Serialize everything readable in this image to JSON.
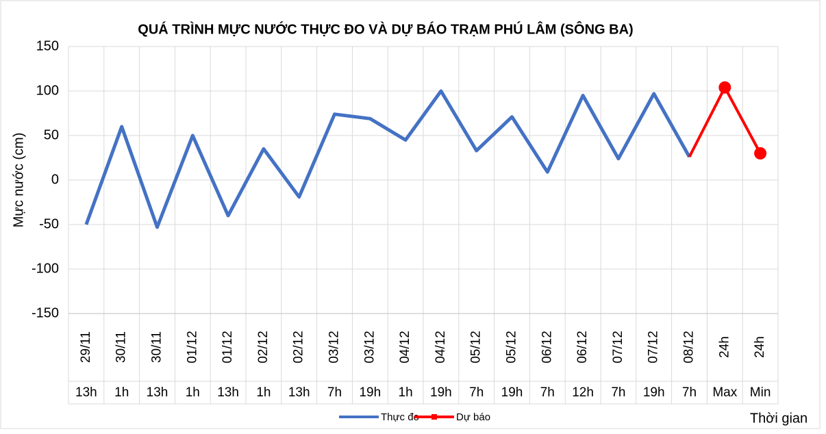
{
  "chart_data": {
    "type": "line",
    "title": "QUÁ TRÌNH MỰC NƯỚC THỰC ĐO VÀ DỰ BÁO TRẠM PHÚ LÂM (SÔNG BA)",
    "y_label": "Mực nước (cm)",
    "x_label": "Thời gian",
    "categories": [
      "29/11",
      "30/11",
      "30/11",
      "01/12",
      "01/12",
      "02/12",
      "02/12",
      "03/12",
      "03/12",
      "04/12",
      "04/12",
      "05/12",
      "05/12",
      "06/12",
      "06/12",
      "07/12",
      "07/12",
      "08/12",
      "24h",
      "24h"
    ],
    "subcategories": [
      "13h",
      "1h",
      "13h",
      "1h",
      "13h",
      "1h",
      "13h",
      "7h",
      "19h",
      "1h",
      "19h",
      "7h",
      "19h",
      "7h",
      "12h",
      "7h",
      "19h",
      "7h",
      "Max",
      "Min"
    ],
    "series": [
      {
        "name": "Thực đo",
        "color": "#4472c4",
        "values": [
          -50,
          60,
          -53,
          50,
          -40,
          35,
          -19,
          74,
          69,
          45,
          100,
          33,
          71,
          9,
          95,
          24,
          97,
          26,
          null,
          null
        ]
      },
      {
        "name": "Dự báo",
        "color": "#ff0000",
        "values": [
          null,
          null,
          null,
          null,
          null,
          null,
          null,
          null,
          null,
          null,
          null,
          null,
          null,
          null,
          null,
          null,
          null,
          26,
          104,
          30
        ]
      }
    ],
    "ylim": [
      -150,
      150
    ],
    "yticks": [
      -150,
      -100,
      -50,
      0,
      50,
      100,
      150
    ],
    "grid": true,
    "legend": "bottom"
  }
}
